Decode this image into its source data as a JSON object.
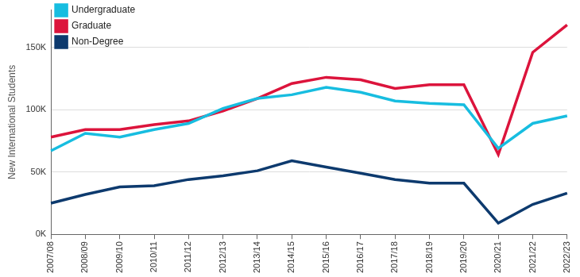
{
  "chart_data": {
    "type": "line",
    "y_label": "New International Students",
    "categories": [
      "2007/08",
      "2008/09",
      "2009/10",
      "2010/11",
      "2011/12",
      "2012/13",
      "2013/14",
      "2014/15",
      "2015/16",
      "2016/17",
      "2017/18",
      "2018/19",
      "2019/20",
      "2020/21",
      "2021/22",
      "2022/23"
    ],
    "series": [
      {
        "name": "Undergraduate",
        "color": "#17bde0",
        "values": [
          67000,
          81000,
          78000,
          84000,
          89000,
          101000,
          109000,
          112000,
          118000,
          114000,
          107000,
          105000,
          104000,
          69000,
          89000,
          95000
        ]
      },
      {
        "name": "Graduate",
        "color": "#dc143c",
        "values": [
          78000,
          84000,
          84000,
          88000,
          91000,
          99000,
          109000,
          121000,
          126000,
          124000,
          117000,
          120000,
          120000,
          64000,
          146000,
          168000
        ]
      },
      {
        "name": "Non-Degree",
        "color": "#0d3a6e",
        "values": [
          25000,
          32000,
          38000,
          39000,
          44000,
          47000,
          51000,
          59000,
          54000,
          49000,
          44000,
          41000,
          41000,
          9000,
          24000,
          33000
        ]
      }
    ],
    "ylim": [
      0,
      180000
    ],
    "yticks": [
      {
        "value": 0,
        "label": "0K"
      },
      {
        "value": 50000,
        "label": "50K"
      },
      {
        "value": 100000,
        "label": "100K"
      },
      {
        "value": 150000,
        "label": "150K"
      }
    ],
    "grid": true,
    "legend": "upper left"
  }
}
